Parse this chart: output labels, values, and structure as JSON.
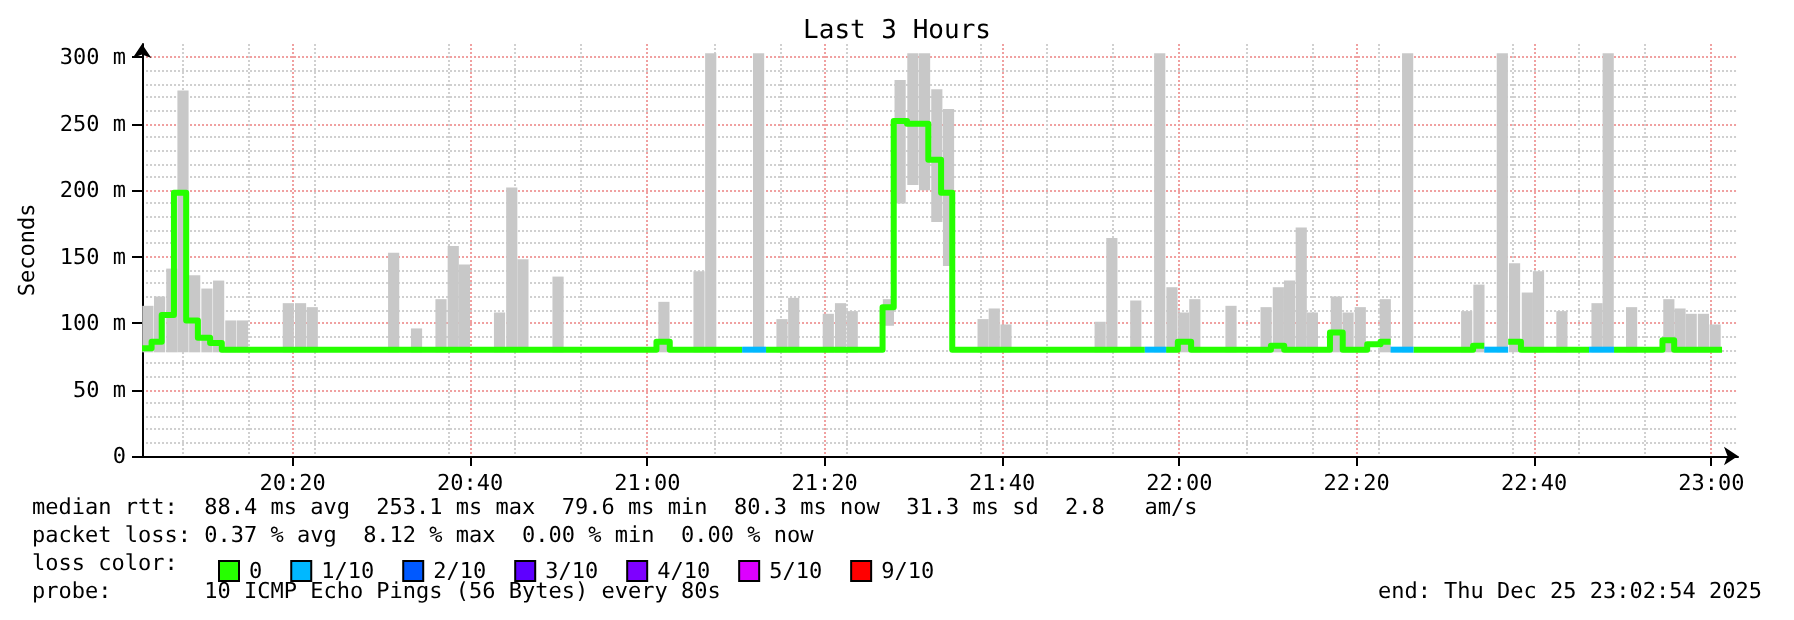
{
  "chart_data": {
    "type": "step",
    "title": "Last 3 Hours",
    "ylabel": "Seconds",
    "legend_title": "loss color:",
    "legend": "bottom left",
    "grid": true,
    "xlim": [
      20.05,
      23.05
    ],
    "xticks": [
      {
        "value": 20.3333,
        "label": "20:20"
      },
      {
        "value": 20.6667,
        "label": "20:40"
      },
      {
        "value": 21,
        "label": "21:00"
      },
      {
        "value": 21.3333,
        "label": "21:20"
      },
      {
        "value": 21.6667,
        "label": "21:40"
      },
      {
        "value": 22,
        "label": "22:00"
      },
      {
        "value": 22.3333,
        "label": "22:20"
      },
      {
        "value": 22.6667,
        "label": "22:40"
      },
      {
        "value": 23,
        "label": "23:00"
      }
    ],
    "ylim": [
      0,
      310
    ],
    "yticks": [
      0,
      {
        "value": 50,
        "label": "50 m"
      },
      {
        "value": 100,
        "label": "100 m"
      },
      {
        "value": 150,
        "label": "150 m"
      },
      {
        "value": 200,
        "label": "200 m"
      },
      {
        "value": 250,
        "label": "250 m"
      },
      {
        "value": 300,
        "label": "300 m"
      }
    ],
    "series": [
      {
        "type": "bar",
        "color": "#c8c8c8",
        "x": [
          20.061,
          20.083,
          20.106,
          20.127,
          20.149,
          20.172,
          20.194,
          20.217,
          20.239,
          20.325,
          20.348,
          20.37,
          20.523,
          20.566,
          20.612,
          20.635,
          20.656,
          20.722,
          20.745,
          20.766,
          20.832,
          21.031,
          21.097,
          21.119,
          21.209,
          21.253,
          21.275,
          21.34,
          21.363,
          21.385,
          21.453,
          21.475,
          21.499,
          21.521,
          21.544,
          21.566,
          21.631,
          21.652,
          21.674,
          21.851,
          21.873,
          21.918,
          21.963,
          21.986,
          22.008,
          22.029,
          22.097,
          22.163,
          22.186,
          22.207,
          22.229,
          22.25,
          22.295,
          22.317,
          22.34,
          22.387,
          22.429,
          22.54,
          22.563,
          22.607,
          22.63,
          22.654,
          22.675,
          22.719,
          22.785,
          22.806,
          22.85,
          22.92,
          22.941,
          22.962,
          22.985,
          23.007
        ],
        "base": [
          78,
          78,
          78,
          78,
          78,
          78,
          78,
          78,
          78,
          78,
          78,
          78,
          78,
          78,
          78,
          78,
          78,
          78,
          78,
          78,
          78,
          78,
          78,
          78,
          78,
          78,
          78,
          78,
          78,
          78,
          98,
          190,
          204,
          200,
          176,
          143,
          78,
          78,
          78,
          78,
          78,
          78,
          78,
          78,
          78,
          78,
          78,
          78,
          78,
          78,
          78,
          78,
          78,
          78,
          78,
          78,
          78,
          78,
          78,
          78,
          78,
          78,
          78,
          78,
          78,
          78,
          78,
          78,
          78,
          78,
          78,
          78
        ],
        "values": [
          35,
          42,
          63,
          197,
          58,
          48,
          54,
          24,
          24,
          37,
          37,
          34,
          75,
          18,
          40,
          80,
          66,
          30,
          124,
          70,
          57,
          38,
          61,
          225,
          225,
          25,
          41,
          29,
          37,
          31,
          20,
          93,
          99,
          103,
          100,
          118,
          25,
          33,
          21,
          23,
          86,
          39,
          225,
          49,
          30,
          40,
          35,
          34,
          49,
          54,
          94,
          30,
          42,
          30,
          34,
          40,
          225,
          31,
          51,
          225,
          67,
          45,
          61,
          31,
          37,
          225,
          34,
          40,
          33,
          29,
          29,
          21
        ]
      },
      {
        "name": "0",
        "color": "#26ff00",
        "x": [
          20.05,
          20.068,
          20.087,
          20.11,
          20.133,
          20.155,
          20.178,
          20.2,
          21.017,
          21.042,
          21.178,
          21.223,
          21.442,
          21.463,
          21.488,
          21.507,
          21.528,
          21.552,
          21.573,
          21.935,
          21.975,
          21.997,
          22.022,
          22.172,
          22.197,
          22.283,
          22.307,
          22.353,
          22.378,
          22.397,
          22.44,
          22.552,
          22.573,
          22.618,
          22.642,
          22.77,
          22.817,
          22.908,
          22.93,
          23.02
        ],
        "values": [
          81,
          86,
          106,
          198,
          102,
          89,
          85,
          80,
          86,
          80,
          null,
          80,
          112,
          252,
          250,
          250,
          223,
          198,
          80,
          null,
          80,
          86,
          80,
          83,
          80,
          93,
          80,
          84,
          86,
          null,
          80,
          83,
          null,
          86,
          80,
          null,
          80,
          87,
          80,
          80
        ]
      },
      {
        "name": "1/10",
        "type": "line",
        "color": "#00b8ff",
        "x": [
          21.178,
          21.223
        ],
        "values": [
          80,
          80
        ]
      },
      {
        "type": "line",
        "color": "#00b8ff",
        "x": [
          21.935,
          21.975
        ],
        "values": [
          80,
          80
        ]
      },
      {
        "type": "line",
        "color": "#00b8ff",
        "x": [
          22.397,
          22.44
        ],
        "values": [
          80,
          80
        ]
      },
      {
        "type": "line",
        "color": "#00b8ff",
        "x": [
          22.573,
          22.618
        ],
        "values": [
          80,
          80
        ]
      },
      {
        "type": "line",
        "color": "#00b8ff",
        "x": [
          22.77,
          22.817
        ],
        "values": [
          80,
          80
        ]
      },
      {
        "name": "2/10",
        "color": "#0059ff"
      },
      {
        "name": "3/10",
        "color": "#5e00ff"
      },
      {
        "name": "4/10",
        "color": "#7e00ff"
      },
      {
        "name": "5/10",
        "color": "#dd00ff"
      },
      {
        "name": "9/10",
        "color": "#ff0000"
      }
    ],
    "annotations": [
      "median rtt:  88.4 ms avg  253.1 ms max  79.6 ms min  80.3 ms now  31.3 ms sd  2.8   am/s",
      "packet loss: 0.37 % avg  8.12 % max  0.00 % min  0.00 % now",
      "probe:       10 ICMP Echo Pings (56 Bytes) every 80s",
      "end: Thu Dec 25 23:02:54 2025"
    ]
  }
}
